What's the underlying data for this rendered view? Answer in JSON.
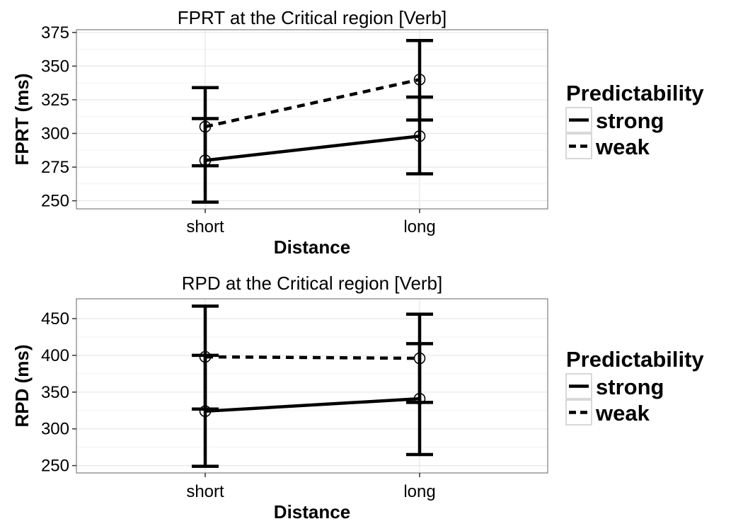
{
  "chart_data": [
    {
      "type": "line",
      "title": "FPRT at the Critical region [Verb]",
      "xlabel": "Distance",
      "ylabel": "FPRT (ms)",
      "categories": [
        "short",
        "long"
      ],
      "ylim": [
        244,
        377
      ],
      "yticks": [
        250,
        275,
        300,
        325,
        350,
        375
      ],
      "grid": true,
      "legend": {
        "title": "Predictability",
        "position": "right"
      },
      "series": [
        {
          "name": "strong",
          "linestyle": "solid",
          "values": [
            280,
            298
          ],
          "error_low": [
            249,
            270
          ],
          "error_high": [
            311,
            327
          ]
        },
        {
          "name": "weak",
          "linestyle": "dashed",
          "values": [
            305,
            340
          ],
          "error_low": [
            276,
            310
          ],
          "error_high": [
            334,
            369
          ]
        }
      ]
    },
    {
      "type": "line",
      "title": "RPD at the Critical region [Verb]",
      "xlabel": "Distance",
      "ylabel": "RPD (ms)",
      "categories": [
        "short",
        "long"
      ],
      "ylim": [
        240,
        477
      ],
      "yticks": [
        250,
        300,
        350,
        400,
        450
      ],
      "grid": true,
      "legend": {
        "title": "Predictability",
        "position": "right"
      },
      "series": [
        {
          "name": "strong",
          "linestyle": "solid",
          "values": [
            324,
            341
          ],
          "error_low": [
            249,
            265
          ],
          "error_high": [
            400,
            416
          ]
        },
        {
          "name": "weak",
          "linestyle": "dashed",
          "values": [
            398,
            396
          ],
          "error_low": [
            327,
            336
          ],
          "error_high": [
            467,
            456
          ]
        }
      ]
    }
  ]
}
